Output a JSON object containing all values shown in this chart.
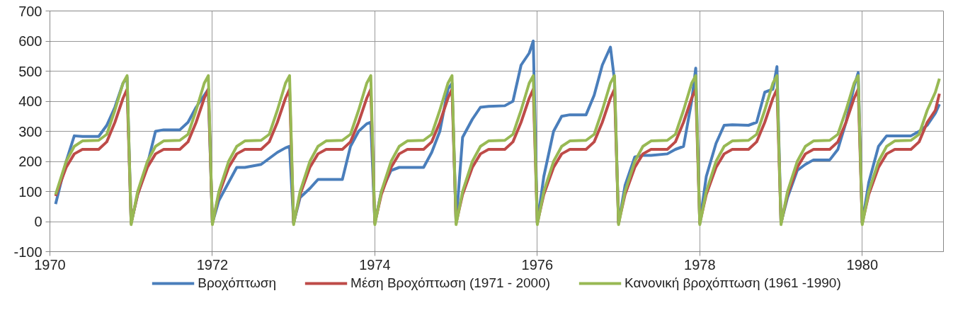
{
  "chart_data": {
    "type": "line",
    "x": [
      1970.07,
      1970.2,
      1970.3,
      1970.4,
      1970.6,
      1970.7,
      1970.8,
      1970.9,
      1970.95,
      1971,
      1971.08,
      1971.2,
      1971.3,
      1971.4,
      1971.6,
      1971.7,
      1971.8,
      1971.9,
      1971.95,
      1972,
      1972.08,
      1972.2,
      1972.3,
      1972.4,
      1972.6,
      1972.7,
      1972.8,
      1972.9,
      1972.95,
      1973,
      1973.08,
      1973.2,
      1973.3,
      1973.4,
      1973.6,
      1973.7,
      1973.8,
      1973.9,
      1973.95,
      1974,
      1974.08,
      1974.2,
      1974.3,
      1974.4,
      1974.6,
      1974.7,
      1974.8,
      1974.9,
      1974.95,
      1975,
      1975.08,
      1975.2,
      1975.3,
      1975.4,
      1975.6,
      1975.7,
      1975.8,
      1975.9,
      1975.95,
      1976,
      1976.08,
      1976.2,
      1976.3,
      1976.4,
      1976.6,
      1976.7,
      1976.8,
      1976.9,
      1976.95,
      1977,
      1977.08,
      1977.2,
      1977.3,
      1977.4,
      1977.6,
      1977.7,
      1977.8,
      1977.9,
      1977.95,
      1978,
      1978.08,
      1978.2,
      1978.3,
      1978.4,
      1978.6,
      1978.7,
      1978.8,
      1978.9,
      1978.95,
      1979,
      1979.08,
      1979.2,
      1979.3,
      1979.4,
      1979.6,
      1979.7,
      1979.8,
      1979.9,
      1979.95,
      1980,
      1980.08,
      1980.2,
      1980.3,
      1980.4,
      1980.6,
      1980.7,
      1980.8,
      1980.9,
      1980.95
    ],
    "series": [
      {
        "name": "Βροχόπτωση",
        "color": "#4a7ebb",
        "values": [
          58,
          200,
          285,
          283,
          283,
          320,
          380,
          460,
          480,
          -5,
          90,
          190,
          300,
          305,
          305,
          330,
          380,
          420,
          440,
          -5,
          70,
          130,
          180,
          180,
          190,
          210,
          230,
          245,
          250,
          -5,
          80,
          110,
          140,
          140,
          140,
          250,
          300,
          325,
          330,
          -5,
          100,
          170,
          180,
          180,
          180,
          230,
          300,
          440,
          460,
          -5,
          280,
          340,
          380,
          383,
          385,
          400,
          520,
          560,
          600,
          -5,
          150,
          300,
          350,
          355,
          355,
          420,
          520,
          580,
          470,
          -5,
          120,
          215,
          220,
          220,
          225,
          240,
          250,
          400,
          510,
          -5,
          150,
          260,
          320,
          322,
          320,
          330,
          430,
          440,
          515,
          -5,
          80,
          170,
          190,
          205,
          205,
          240,
          330,
          450,
          495,
          -5,
          130,
          250,
          285,
          285,
          285,
          300,
          320,
          360,
          390
        ]
      },
      {
        "name": "Μέση Βροχόπτωση (1971 - 2000)",
        "color": "#be4b48",
        "values": [
          85,
          180,
          225,
          240,
          240,
          265,
          330,
          410,
          440,
          -5,
          90,
          180,
          225,
          240,
          240,
          265,
          330,
          410,
          440,
          -5,
          90,
          180,
          225,
          240,
          240,
          265,
          330,
          410,
          440,
          -5,
          90,
          180,
          225,
          240,
          240,
          265,
          330,
          410,
          440,
          -5,
          90,
          180,
          225,
          240,
          240,
          265,
          330,
          410,
          440,
          -5,
          90,
          180,
          225,
          240,
          240,
          265,
          330,
          410,
          440,
          -5,
          90,
          180,
          225,
          240,
          240,
          265,
          330,
          410,
          440,
          -5,
          90,
          180,
          225,
          240,
          240,
          265,
          330,
          410,
          440,
          -5,
          90,
          180,
          225,
          240,
          240,
          265,
          330,
          410,
          440,
          -5,
          90,
          180,
          225,
          240,
          240,
          265,
          330,
          410,
          440,
          -5,
          90,
          180,
          225,
          240,
          240,
          265,
          330,
          370,
          425
        ]
      },
      {
        "name": "Κανονική βροχόπτωση (1961 -1990)",
        "color": "#98b954",
        "values": [
          90,
          200,
          250,
          268,
          270,
          290,
          370,
          460,
          485,
          -10,
          100,
          200,
          250,
          268,
          270,
          290,
          370,
          460,
          485,
          -10,
          100,
          200,
          250,
          268,
          270,
          290,
          370,
          460,
          485,
          -10,
          100,
          200,
          250,
          268,
          270,
          290,
          370,
          460,
          485,
          -10,
          100,
          200,
          250,
          268,
          270,
          290,
          370,
          460,
          485,
          -10,
          100,
          200,
          250,
          268,
          270,
          290,
          370,
          460,
          485,
          -10,
          100,
          200,
          250,
          268,
          270,
          290,
          370,
          460,
          485,
          -10,
          100,
          200,
          250,
          268,
          270,
          290,
          370,
          460,
          485,
          -10,
          100,
          200,
          250,
          268,
          270,
          290,
          370,
          460,
          485,
          -10,
          100,
          200,
          250,
          268,
          270,
          290,
          370,
          460,
          485,
          -10,
          100,
          200,
          250,
          268,
          270,
          290,
          370,
          430,
          475
        ]
      }
    ],
    "xlim": [
      1970,
      1981
    ],
    "xticks": [
      1970,
      1972,
      1974,
      1976,
      1978,
      1980
    ],
    "ylim": [
      -100,
      700
    ],
    "yticks": [
      -100,
      0,
      100,
      200,
      300,
      400,
      500,
      600,
      700
    ],
    "grid": true,
    "legend": "bottom",
    "marker": "none",
    "line_style": "solid"
  }
}
